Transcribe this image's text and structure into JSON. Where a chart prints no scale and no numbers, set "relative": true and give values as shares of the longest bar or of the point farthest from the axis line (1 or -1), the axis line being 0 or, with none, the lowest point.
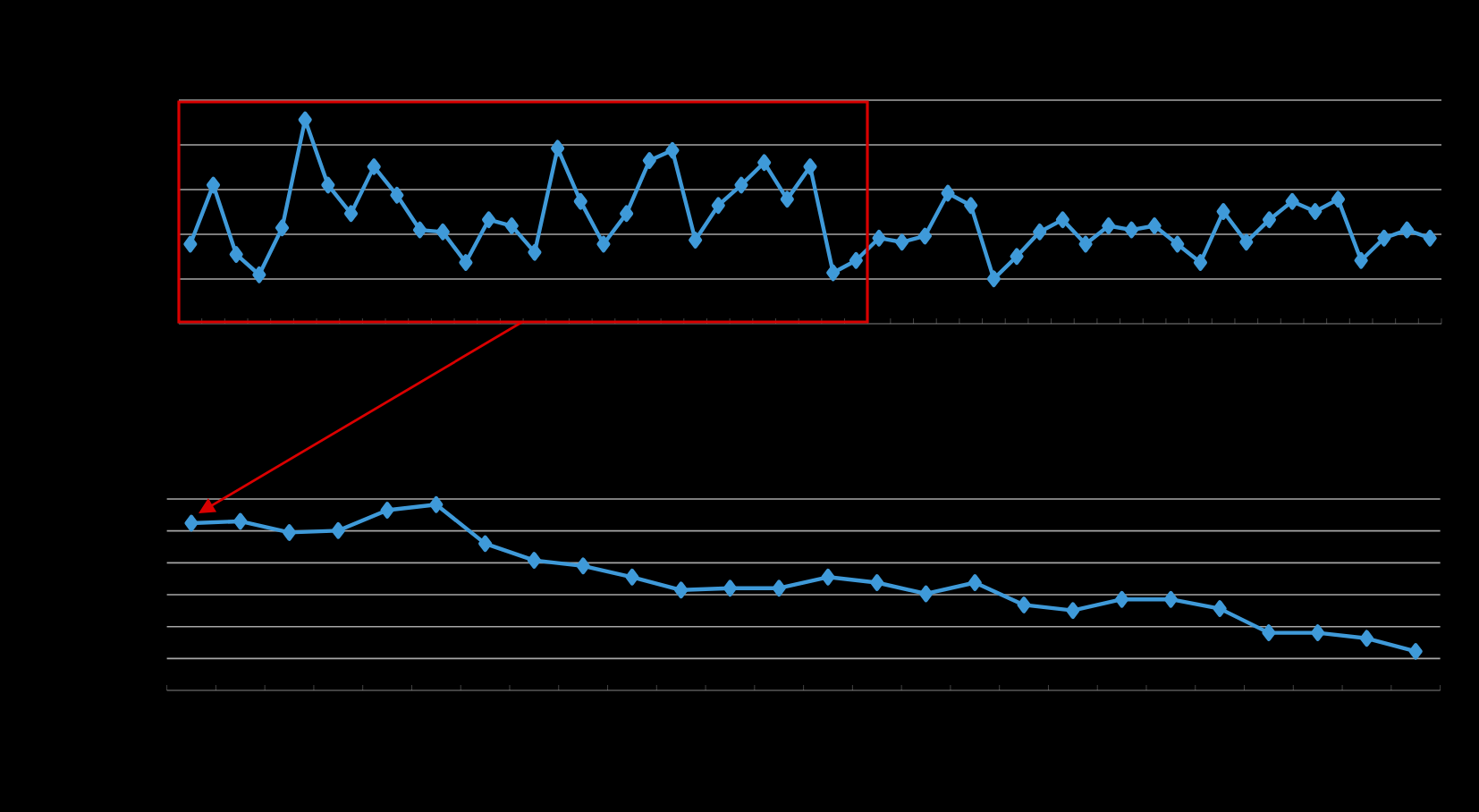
{
  "chart_data": [
    {
      "type": "line",
      "relative": true,
      "grid": "y",
      "marker": "diamond",
      "line_style": "solid",
      "categories": [
        null,
        null,
        null,
        null,
        null,
        null,
        null,
        null,
        null,
        null,
        null,
        null,
        null,
        null,
        null,
        null,
        null,
        null,
        null,
        null,
        null,
        null,
        null,
        null,
        null,
        null,
        null,
        null,
        null,
        null,
        null,
        null,
        null,
        null,
        null,
        null,
        null,
        null,
        null,
        null,
        null,
        null,
        null,
        null,
        null,
        null,
        null,
        null,
        null,
        null,
        null,
        null,
        null,
        null,
        null
      ],
      "series": [
        {
          "color": "#3f9ad9",
          "values": [
            0.39,
            0.68,
            0.34,
            0.24,
            0.47,
            1,
            0.68,
            0.54,
            0.77,
            0.63,
            0.46,
            0.45,
            0.3,
            0.51,
            0.48,
            0.35,
            0.86,
            0.6,
            0.39,
            0.54,
            0.8,
            0.85,
            0.41,
            0.58,
            0.68,
            0.79,
            0.61,
            0.77,
            0.25,
            0.31,
            0.42,
            0.4,
            0.43,
            0.64,
            0.58,
            0.22,
            0.33,
            0.45,
            0.51,
            0.39,
            0.48,
            0.46,
            0.48,
            0.39,
            0.3,
            0.55,
            0.4,
            0.51,
            0.6,
            0.55,
            0.61,
            0.31,
            0.42,
            0.46,
            0.42
          ]
        }
      ]
    },
    {
      "type": "line",
      "relative": true,
      "grid": "y",
      "marker": "diamond",
      "line_style": "solid",
      "categories": [
        null,
        null,
        null,
        null,
        null,
        null,
        null,
        null,
        null,
        null,
        null,
        null,
        null,
        null,
        null,
        null,
        null,
        null,
        null,
        null,
        null,
        null,
        null,
        null,
        null,
        null
      ],
      "series": [
        {
          "color": "#3f9ad9",
          "values": [
            0.9,
            0.91,
            0.85,
            0.86,
            0.97,
            1,
            0.79,
            0.7,
            0.67,
            0.61,
            0.54,
            0.55,
            0.55,
            0.61,
            0.58,
            0.52,
            0.58,
            0.46,
            0.43,
            0.49,
            0.49,
            0.44,
            0.31,
            0.31,
            0.28,
            0.21
          ]
        }
      ]
    }
  ]
}
